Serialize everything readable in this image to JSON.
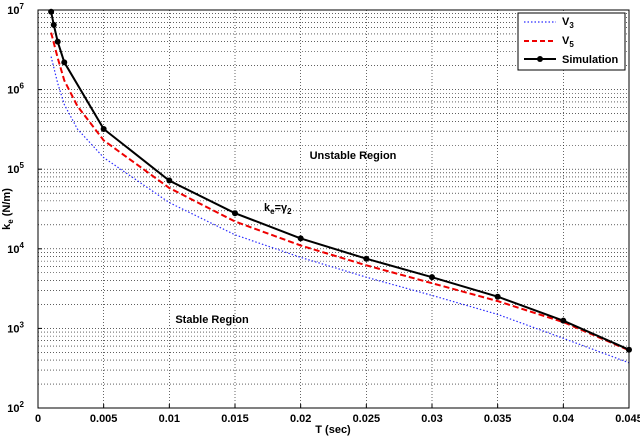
{
  "chart_data": {
    "type": "line",
    "xlabel": "T (sec)",
    "ylabel": "k_e (N/m)",
    "xlim": [
      0,
      0.045
    ],
    "ylim": [
      100,
      10000000
    ],
    "yscale": "log",
    "grid": true,
    "legend_position": "top-right",
    "x_ticks": [
      "0",
      "0.005",
      "0.01",
      "0.015",
      "0.02",
      "0.025",
      "0.03",
      "0.035",
      "0.04",
      "0.045"
    ],
    "y_ticks": [
      {
        "base": "10",
        "exp": "2"
      },
      {
        "base": "10",
        "exp": "3"
      },
      {
        "base": "10",
        "exp": "4"
      },
      {
        "base": "10",
        "exp": "5"
      },
      {
        "base": "10",
        "exp": "6"
      },
      {
        "base": "10",
        "exp": "7"
      }
    ],
    "annotations": {
      "unstable": "Unstable Region",
      "stable": "Stable Region",
      "curve_label": {
        "k": "k",
        "sub_e": "e",
        "eq": "=γ",
        "sub_2": "2"
      }
    },
    "series": [
      {
        "name": "V",
        "subscript": "3",
        "color": "#2a2aff",
        "style": "dotted",
        "markers": false,
        "x": [
          0.001,
          0.0015,
          0.002,
          0.003,
          0.005,
          0.01,
          0.015,
          0.02,
          0.025,
          0.03,
          0.035,
          0.04,
          0.045
        ],
        "y": [
          2600000,
          1200000,
          650000,
          320000,
          140000,
          38000,
          15000,
          7800,
          4400,
          2600,
          1500,
          750,
          370
        ]
      },
      {
        "name": "V",
        "subscript": "5",
        "color": "#ee0000",
        "style": "dashed",
        "markers": false,
        "x": [
          0.001,
          0.0015,
          0.002,
          0.003,
          0.005,
          0.01,
          0.015,
          0.02,
          0.025,
          0.03,
          0.035,
          0.04,
          0.045
        ],
        "y": [
          5200000,
          2500000,
          1300000,
          620000,
          230000,
          58000,
          22000,
          11000,
          6200,
          3700,
          2200,
          1200,
          530
        ]
      },
      {
        "name": "Simulation",
        "subscript": "",
        "color": "#000000",
        "style": "solid",
        "markers": true,
        "x": [
          0.001,
          0.0012,
          0.0015,
          0.002,
          0.005,
          0.01,
          0.015,
          0.02,
          0.025,
          0.03,
          0.035,
          0.04,
          0.045
        ],
        "y": [
          9500000,
          6500000,
          4000000,
          2200000,
          320000,
          72000,
          28000,
          13500,
          7500,
          4400,
          2500,
          1250,
          540
        ]
      }
    ]
  }
}
